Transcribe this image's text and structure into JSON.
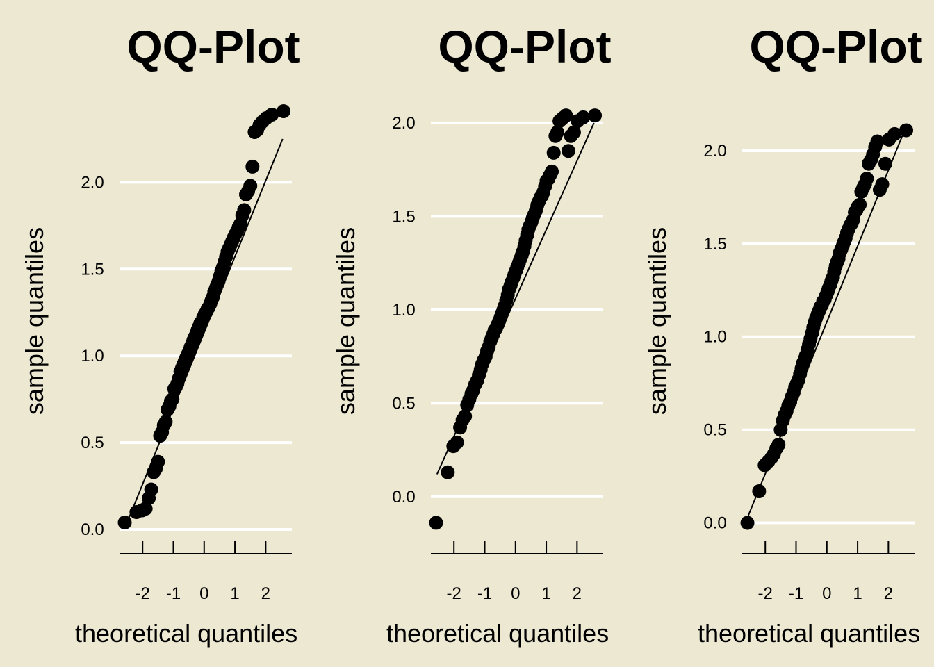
{
  "colors": {
    "background": "#ece8d1",
    "grid": "#ffffff",
    "points": "#000000"
  },
  "chart_data": [
    {
      "type": "scatter",
      "title": "QQ-Plot",
      "xlabel": "theoretical quantiles",
      "ylabel": "sample quantiles",
      "xlim": [
        -2.75,
        2.85
      ],
      "ylim": [
        -0.08,
        2.45
      ],
      "xticks": [
        -2,
        -1,
        0,
        1,
        2
      ],
      "xtick_labels": [
        "-2",
        "-1",
        "0",
        "1",
        "2"
      ],
      "yticks": [
        0.0,
        0.5,
        1.0,
        1.5,
        2.0
      ],
      "ytick_labels": [
        "0.0",
        "0.5",
        "1.0",
        "1.5",
        "2.0"
      ],
      "grid": "horizontal",
      "reference_line": {
        "x": [
          -2.55,
          2.55
        ],
        "y": [
          0.02,
          2.25
        ]
      },
      "points": {
        "x": [
          -2.58,
          -2.2,
          -2.02,
          -1.9,
          -1.8,
          -1.72,
          -1.64,
          -1.57,
          -1.5,
          -1.43,
          -1.37,
          -1.31,
          -1.25,
          -1.19,
          -1.13,
          -1.08,
          -1.03,
          -0.97,
          -0.92,
          -0.87,
          -0.82,
          -0.77,
          -0.72,
          -0.68,
          -0.63,
          -0.58,
          -0.53,
          -0.48,
          -0.44,
          -0.39,
          -0.35,
          -0.3,
          -0.25,
          -0.21,
          -0.16,
          -0.12,
          -0.07,
          -0.03,
          0.02,
          0.06,
          0.11,
          0.15,
          0.2,
          0.24,
          0.29,
          0.33,
          0.38,
          0.42,
          0.47,
          0.52,
          0.56,
          0.61,
          0.66,
          0.71,
          0.76,
          0.81,
          0.86,
          0.91,
          0.96,
          1.01,
          1.07,
          1.12,
          1.18,
          1.24,
          1.3,
          1.36,
          1.43,
          1.5,
          1.57,
          1.64,
          1.72,
          1.8,
          1.9,
          2.02,
          2.2,
          2.58
        ],
        "y": [
          0.04,
          0.1,
          0.11,
          0.12,
          0.18,
          0.23,
          0.33,
          0.35,
          0.39,
          0.54,
          0.56,
          0.6,
          0.62,
          0.69,
          0.71,
          0.74,
          0.75,
          0.81,
          0.82,
          0.84,
          0.87,
          0.91,
          0.93,
          0.95,
          0.97,
          0.99,
          1.01,
          1.03,
          1.05,
          1.07,
          1.09,
          1.11,
          1.13,
          1.15,
          1.17,
          1.19,
          1.2,
          1.22,
          1.24,
          1.25,
          1.27,
          1.28,
          1.3,
          1.32,
          1.34,
          1.37,
          1.39,
          1.41,
          1.43,
          1.46,
          1.49,
          1.51,
          1.54,
          1.57,
          1.6,
          1.62,
          1.64,
          1.66,
          1.68,
          1.7,
          1.72,
          1.74,
          1.76,
          1.81,
          1.84,
          1.93,
          1.95,
          1.98,
          2.09,
          2.29,
          2.3,
          2.33,
          2.35,
          2.37,
          2.39,
          2.41
        ]
      }
    },
    {
      "type": "scatter",
      "title": "QQ-Plot",
      "xlabel": "theoretical quantiles",
      "ylabel": "sample quantiles",
      "xlim": [
        -2.75,
        2.85
      ],
      "ylim": [
        -0.25,
        2.1
      ],
      "xticks": [
        -2,
        -1,
        0,
        1,
        2
      ],
      "xtick_labels": [
        "-2",
        "-1",
        "0",
        "1",
        "2"
      ],
      "yticks": [
        0.0,
        0.5,
        1.0,
        1.5,
        2.0
      ],
      "ytick_labels": [
        "0.0",
        "0.5",
        "1.0",
        "1.5",
        "2.0"
      ],
      "grid": "horizontal",
      "reference_line": {
        "x": [
          -2.55,
          2.55
        ],
        "y": [
          0.12,
          2.0
        ]
      },
      "points": {
        "x": [
          -2.58,
          -2.2,
          -2.02,
          -1.9,
          -1.8,
          -1.72,
          -1.64,
          -1.57,
          -1.5,
          -1.43,
          -1.37,
          -1.31,
          -1.25,
          -1.19,
          -1.13,
          -1.08,
          -1.03,
          -0.97,
          -0.92,
          -0.87,
          -0.82,
          -0.77,
          -0.72,
          -0.68,
          -0.63,
          -0.58,
          -0.53,
          -0.48,
          -0.44,
          -0.39,
          -0.35,
          -0.3,
          -0.25,
          -0.21,
          -0.16,
          -0.12,
          -0.07,
          -0.03,
          0.02,
          0.06,
          0.11,
          0.15,
          0.2,
          0.24,
          0.29,
          0.33,
          0.38,
          0.42,
          0.47,
          0.52,
          0.56,
          0.61,
          0.66,
          0.71,
          0.76,
          0.81,
          0.86,
          0.91,
          0.96,
          1.01,
          1.07,
          1.12,
          1.18,
          1.24,
          1.3,
          1.36,
          1.43,
          1.5,
          1.57,
          1.64,
          1.72,
          1.8,
          1.9,
          2.02,
          2.2,
          2.58
        ],
        "y": [
          -0.14,
          0.13,
          0.27,
          0.29,
          0.37,
          0.41,
          0.43,
          0.49,
          0.52,
          0.55,
          0.57,
          0.6,
          0.62,
          0.65,
          0.68,
          0.71,
          0.73,
          0.75,
          0.78,
          0.8,
          0.83,
          0.85,
          0.87,
          0.89,
          0.9,
          0.92,
          0.94,
          0.96,
          0.98,
          1.0,
          1.02,
          1.05,
          1.08,
          1.11,
          1.13,
          1.15,
          1.17,
          1.19,
          1.21,
          1.23,
          1.25,
          1.27,
          1.29,
          1.31,
          1.34,
          1.37,
          1.4,
          1.43,
          1.45,
          1.47,
          1.49,
          1.51,
          1.53,
          1.56,
          1.58,
          1.6,
          1.61,
          1.63,
          1.66,
          1.69,
          1.7,
          1.72,
          1.74,
          1.84,
          1.93,
          1.95,
          2.01,
          2.02,
          2.03,
          2.04,
          1.85,
          1.93,
          1.95,
          2.01,
          2.03,
          2.04
        ]
      }
    },
    {
      "type": "scatter",
      "title": "QQ-Plot",
      "xlabel": "theoretical quantiles",
      "ylabel": "sample quantiles",
      "xlim": [
        -2.75,
        2.85
      ],
      "ylim": [
        -0.11,
        2.25
      ],
      "xticks": [
        -2,
        -1,
        0,
        1,
        2
      ],
      "xtick_labels": [
        "-2",
        "-1",
        "0",
        "1",
        "2"
      ],
      "yticks": [
        0.0,
        0.5,
        1.0,
        1.5,
        2.0
      ],
      "ytick_labels": [
        "0.0",
        "0.5",
        "1.0",
        "1.5",
        "2.0"
      ],
      "grid": "horizontal",
      "reference_line": {
        "x": [
          -2.55,
          2.55
        ],
        "y": [
          0.04,
          2.12
        ]
      },
      "points": {
        "x": [
          -2.58,
          -2.2,
          -2.02,
          -1.9,
          -1.8,
          -1.72,
          -1.64,
          -1.57,
          -1.5,
          -1.43,
          -1.37,
          -1.31,
          -1.25,
          -1.19,
          -1.13,
          -1.08,
          -1.03,
          -0.97,
          -0.92,
          -0.87,
          -0.82,
          -0.77,
          -0.72,
          -0.68,
          -0.63,
          -0.58,
          -0.53,
          -0.48,
          -0.44,
          -0.39,
          -0.35,
          -0.3,
          -0.25,
          -0.21,
          -0.16,
          -0.12,
          -0.07,
          -0.03,
          0.02,
          0.06,
          0.11,
          0.15,
          0.2,
          0.24,
          0.29,
          0.33,
          0.38,
          0.42,
          0.47,
          0.52,
          0.56,
          0.61,
          0.66,
          0.71,
          0.76,
          0.81,
          0.86,
          0.91,
          0.96,
          1.01,
          1.07,
          1.12,
          1.18,
          1.24,
          1.3,
          1.36,
          1.43,
          1.5,
          1.57,
          1.64,
          1.72,
          1.8,
          1.9,
          2.02,
          2.2,
          2.58
        ],
        "y": [
          0.0,
          0.17,
          0.31,
          0.33,
          0.35,
          0.37,
          0.4,
          0.42,
          0.5,
          0.55,
          0.58,
          0.6,
          0.63,
          0.65,
          0.68,
          0.7,
          0.73,
          0.75,
          0.77,
          0.8,
          0.83,
          0.86,
          0.88,
          0.9,
          0.93,
          0.96,
          0.99,
          1.02,
          1.05,
          1.08,
          1.1,
          1.12,
          1.14,
          1.16,
          1.17,
          1.19,
          1.2,
          1.22,
          1.24,
          1.26,
          1.28,
          1.3,
          1.32,
          1.35,
          1.38,
          1.4,
          1.42,
          1.45,
          1.47,
          1.49,
          1.51,
          1.53,
          1.56,
          1.58,
          1.6,
          1.61,
          1.63,
          1.67,
          1.68,
          1.7,
          1.71,
          1.78,
          1.8,
          1.82,
          1.85,
          1.93,
          1.95,
          1.98,
          2.02,
          2.05,
          1.79,
          1.82,
          1.93,
          2.06,
          2.09,
          2.11
        ]
      }
    }
  ]
}
